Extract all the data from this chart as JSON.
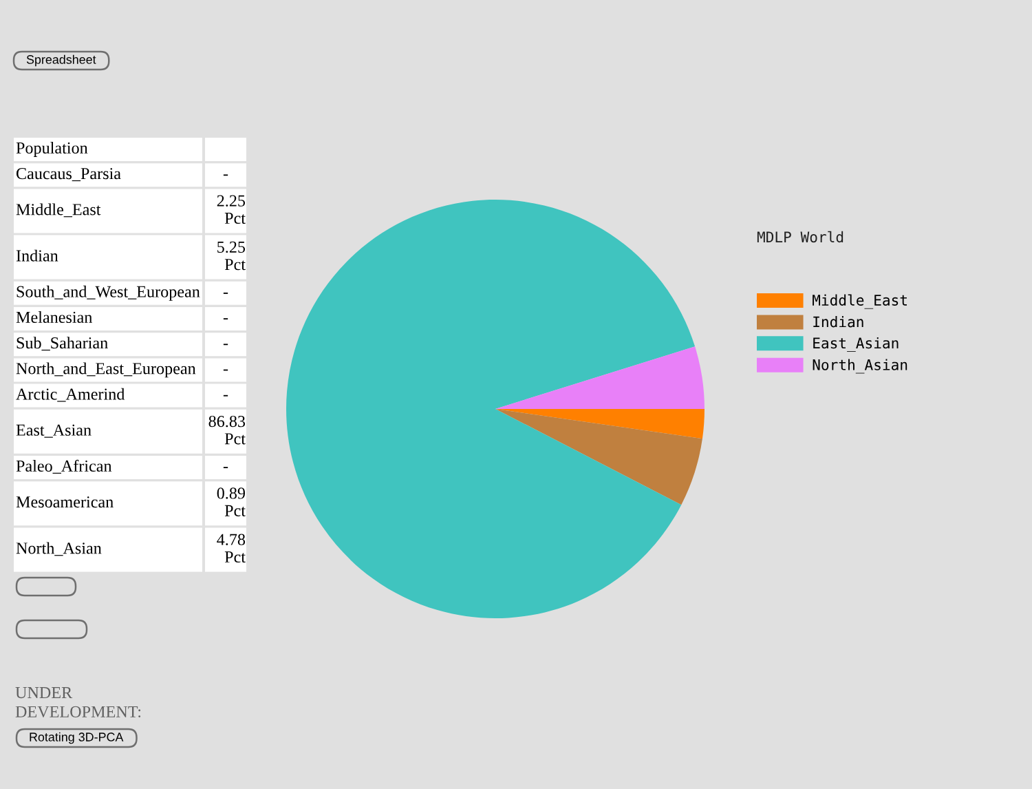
{
  "chart_data": [
    {
      "type": "other",
      "title": "Population",
      "categories": [
        "Caucaus_Parsia",
        "Middle_East",
        "Indian",
        "South_and_West_European",
        "Melanesian",
        "Sub_Saharian",
        "North_and_East_European",
        "Arctic_Amerind",
        "East_Asian",
        "Paleo_African",
        "Mesoamerican",
        "North_Asian"
      ],
      "value_labels": [
        "-",
        "2.25 Pct",
        "5.25 Pct",
        "-",
        "-",
        "-",
        "-",
        "-",
        "86.83 Pct",
        "-",
        "0.89 Pct",
        "4.78 Pct"
      ],
      "annotations": [
        "Spreadsheet",
        null,
        null,
        "UNDER DEVELOPMENT:",
        "Rotating 3D-PCA"
      ]
    },
    {
      "type": "pie",
      "title": "MDLP World",
      "categories": [
        "Middle_East",
        "Indian",
        "East_Asian",
        "North_Asian"
      ],
      "values": [
        2.25,
        5.25,
        86.83,
        4.78
      ],
      "colors": [
        "#ff8000",
        "#c0803f",
        "#40c4bf",
        "#e880f8"
      ],
      "legend": "right"
    }
  ]
}
